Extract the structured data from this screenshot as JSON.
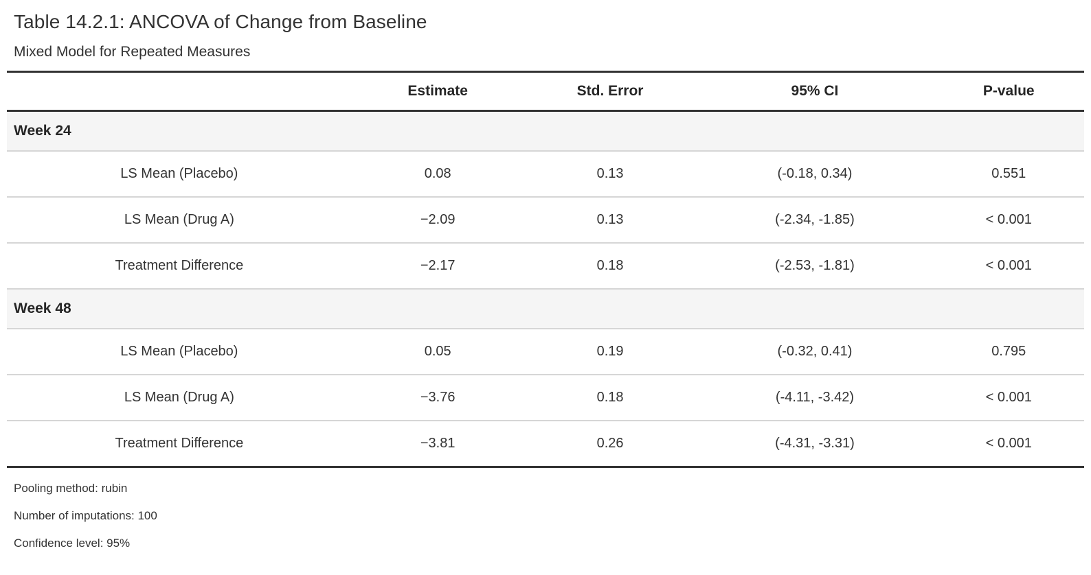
{
  "header": {
    "title": "Table 14.2.1: ANCOVA of Change from Baseline",
    "subtitle": "Mixed Model for Repeated Measures"
  },
  "table": {
    "columns": [
      "",
      "Estimate",
      "Std. Error",
      "95% CI",
      "P-value"
    ],
    "groups": [
      {
        "label": "Week 24",
        "rows": [
          {
            "label": "LS Mean (Placebo)",
            "estimate": "0.08",
            "std_error": "0.13",
            "ci": "(-0.18, 0.34)",
            "p_value": "0.551"
          },
          {
            "label": "LS Mean (Drug A)",
            "estimate": "−2.09",
            "std_error": "0.13",
            "ci": "(-2.34, -1.85)",
            "p_value": "< 0.001"
          },
          {
            "label": "Treatment Difference",
            "estimate": "−2.17",
            "std_error": "0.18",
            "ci": "(-2.53, -1.81)",
            "p_value": "< 0.001"
          }
        ]
      },
      {
        "label": "Week 48",
        "rows": [
          {
            "label": "LS Mean (Placebo)",
            "estimate": "0.05",
            "std_error": "0.19",
            "ci": "(-0.32, 0.41)",
            "p_value": "0.795"
          },
          {
            "label": "LS Mean (Drug A)",
            "estimate": "−3.76",
            "std_error": "0.18",
            "ci": "(-4.11, -3.42)",
            "p_value": "< 0.001"
          },
          {
            "label": "Treatment Difference",
            "estimate": "−3.81",
            "std_error": "0.26",
            "ci": "(-4.31, -3.31)",
            "p_value": "< 0.001"
          }
        ]
      }
    ]
  },
  "footnotes": [
    "Pooling method: rubin",
    "Number of imputations: 100",
    "Confidence level: 95%"
  ],
  "colors": {
    "rule_dark": "#333333",
    "rule_light": "#d6d6d6",
    "group_row_bg": "#f5f5f5",
    "text": "#333333"
  }
}
